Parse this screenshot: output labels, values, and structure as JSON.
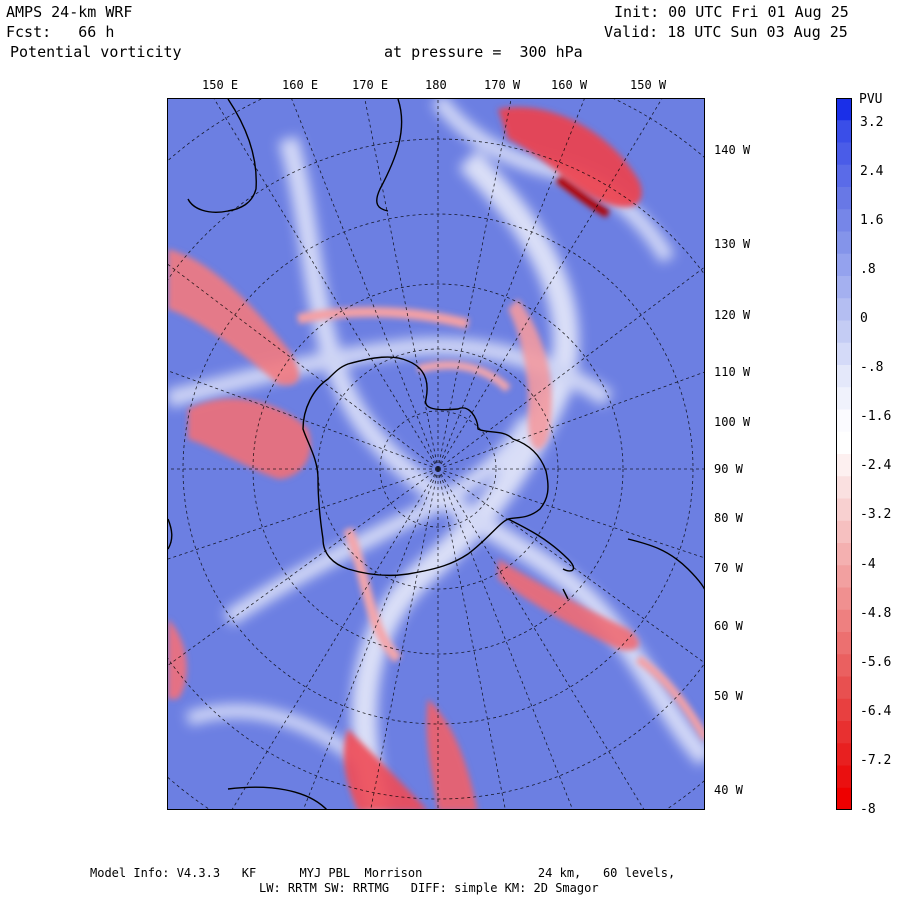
{
  "header": {
    "model": "AMPS 24-km WRF",
    "forecast": "Fcst:   66 h",
    "field": "Potential vorticity",
    "level": "at pressure =  300 hPa",
    "init": "Init: 00 UTC Fri 01 Aug 25",
    "valid": "Valid: 18 UTC Sun 03 Aug 25"
  },
  "top_longitudes": [
    "150 E",
    "160 E",
    "170 E",
    "180",
    "170 W",
    "160 W",
    "150 W"
  ],
  "right_longitudes": [
    "140 W",
    "130 W",
    "120 W",
    "110 W",
    "100 W",
    "90 W",
    "80 W",
    "70 W",
    "60 W",
    "50 W",
    "40 W"
  ],
  "colorbar": {
    "unit": "PVU",
    "labels": [
      "3.2",
      "2.4",
      "1.6",
      ".8",
      "0",
      "-.8",
      "-1.6",
      "-2.4",
      "-3.2",
      "-4",
      "-4.8",
      "-5.6",
      "-6.4",
      "-7.2",
      "-8"
    ],
    "min": -8,
    "max": 3.6,
    "colors": [
      "#1a2fe8",
      "#3a4ee8",
      "#4a5ce8",
      "#5a6be8",
      "#6878e6",
      "#7686e8",
      "#8494ea",
      "#94a2ee",
      "#a4b0f0",
      "#b4bef2",
      "#c4ccf4",
      "#d4daf8",
      "#e4e8fa",
      "#f0f2fc",
      "#fbfbff",
      "#ffffff",
      "#fdf0f0",
      "#fae0e0",
      "#f8d0d0",
      "#f6c0c0",
      "#f4b0b0",
      "#f2a0a0",
      "#f09090",
      "#ee8080",
      "#ec7070",
      "#ea6060",
      "#e85050",
      "#e84040",
      "#e83030",
      "#e82020",
      "#ea1010",
      "#ee0000"
    ]
  },
  "footer": {
    "line1": "Model Info: V4.3.3   KF      MYJ PBL  Morrison                24 km,   60 levels,",
    "line2": "LW: RRTM SW: RRTMG   DIFF: simple KM: 2D Smagor"
  }
}
